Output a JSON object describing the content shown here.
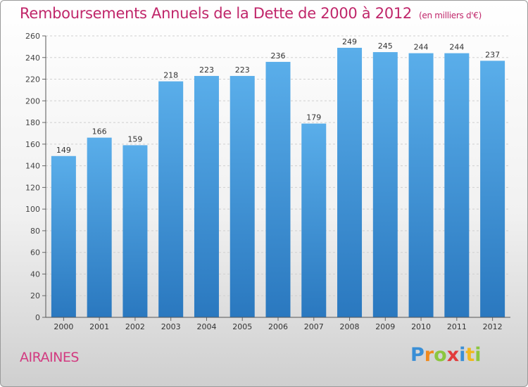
{
  "title": "Remboursements Annuels de la Dette de 2000 à 2012",
  "unit": "(en milliers d'€)",
  "location": "AIRAINES",
  "logo": {
    "letters": [
      "P",
      "r",
      "o",
      "x",
      "i",
      "t",
      "i"
    ],
    "colors": [
      "#3a8fd6",
      "#f08a1e",
      "#8cc63e",
      "#e23c3c",
      "#3a8fd6",
      "#f0b81e",
      "#8cc63e"
    ]
  },
  "colors": {
    "title": "#c0266a",
    "bar_top": "#5aaeea",
    "bar_bottom": "#2a78bf"
  },
  "chart_data": {
    "type": "bar",
    "categories": [
      "2000",
      "2001",
      "2002",
      "2003",
      "2004",
      "2005",
      "2006",
      "2007",
      "2008",
      "2009",
      "2010",
      "2011",
      "2012"
    ],
    "values": [
      149,
      166,
      159,
      218,
      223,
      223,
      236,
      179,
      249,
      245,
      244,
      244,
      237
    ],
    "ylim": [
      0,
      260
    ],
    "yticks": [
      0,
      20,
      40,
      60,
      80,
      100,
      120,
      140,
      160,
      180,
      200,
      220,
      240,
      260
    ],
    "grid": true,
    "xlabel": "",
    "ylabel": ""
  }
}
